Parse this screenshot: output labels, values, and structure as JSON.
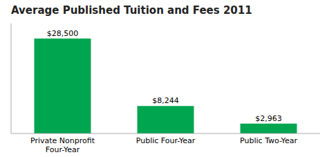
{
  "chart_data": {
    "type": "bar",
    "title": "Average Published Tuition and Fees 2011",
    "categories": [
      "Private Nonprofit\nFour-Year",
      "Public Four-Year",
      "Public Two-Year"
    ],
    "values": [
      28500,
      8244,
      2963
    ],
    "value_labels": [
      "$28,500",
      "$8,244",
      "$2,963"
    ],
    "data_labels": true,
    "color": "#00a550",
    "ylim": [
      0,
      33000
    ],
    "tick_labels": "x",
    "grid": false
  }
}
